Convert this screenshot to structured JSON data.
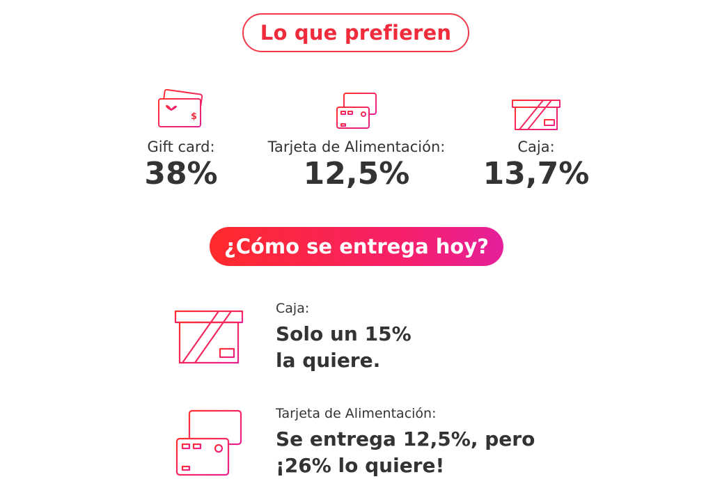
{
  "header": {
    "title": "Lo que prefieren"
  },
  "preferences": [
    {
      "icon": "gift-card-icon",
      "label": "Gift card:",
      "value": "38%"
    },
    {
      "icon": "food-card-icon",
      "label": "Tarjeta de Alimentación:",
      "value": "12,5%"
    },
    {
      "icon": "box-icon",
      "label": "Caja:",
      "value": "13,7%"
    }
  ],
  "delivery": {
    "title": "¿Cómo se entrega hoy?",
    "items": [
      {
        "icon": "box-icon",
        "label": "Caja:",
        "line1": "Solo un 15%",
        "line2": "la quiere."
      },
      {
        "icon": "cards-icon",
        "label": "Tarjeta de Alimentación:",
        "line1": "Se entrega 12,5%, pero",
        "line2": "¡26% lo quiere!"
      }
    ]
  },
  "colors": {
    "accent": "#f02c3c",
    "gradient_start": "#ff2a2a",
    "gradient_end": "#e5209a",
    "text": "#333333"
  }
}
